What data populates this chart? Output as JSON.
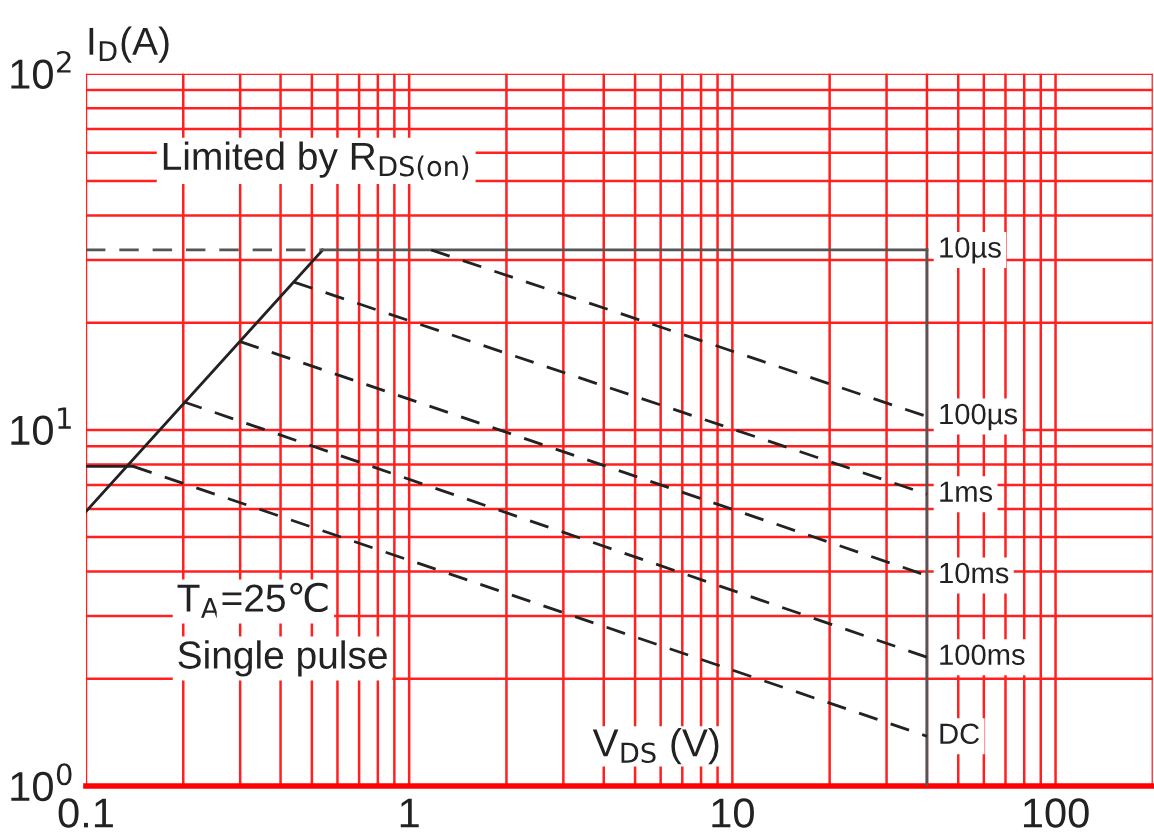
{
  "chart_data": {
    "type": "line",
    "xlabel": "V$_{DS}$ (V)",
    "ylabel": "I$_{D}$(A)",
    "annotations": [
      "Limited by R$_{DS(on)}$",
      "T$_{A}$=25℃",
      "Single pulse"
    ],
    "log": "xy",
    "grid": true,
    "marker": "none",
    "xlim": [
      0.1,
      200
    ],
    "xticks": [
      0.1,
      1,
      10,
      100
    ],
    "ylim": [
      1,
      100
    ],
    "yticks": [
      {
        "value": 1,
        "label": "10$^{0}$"
      },
      {
        "value": 10,
        "label": "10$^{1}$"
      },
      {
        "value": 100,
        "label": "10$^{2}$"
      }
    ],
    "series": [
      {
        "color": "#222222",
        "line_style": "solid",
        "x": [
          0.1,
          0.54
        ],
        "values": [
          5.9,
          32
        ]
      },
      {
        "color": "#555555",
        "line_style": "dashed",
        "x": [
          0.1,
          0.54
        ],
        "values": [
          32,
          32
        ]
      },
      {
        "name": "10µs",
        "color": "#555555",
        "line_style": "solid",
        "x": [
          0.54,
          40
        ],
        "values": [
          32,
          32
        ]
      },
      {
        "color": "#555555",
        "line_style": "solid",
        "x": [
          40,
          40
        ],
        "values": [
          32,
          1
        ]
      },
      {
        "color": "#222222",
        "line_style": "solid",
        "x": [
          0.1,
          0.14
        ],
        "values": [
          7.9,
          7.9
        ]
      },
      {
        "name": "100µs",
        "color": "#222222",
        "line_style": "dashed",
        "x": [
          1.17,
          40
        ],
        "values": [
          32,
          10.9
        ]
      },
      {
        "name": "1ms",
        "color": "#222222",
        "line_style": "dashed",
        "x": [
          0.44,
          40
        ],
        "values": [
          26,
          6.6
        ]
      },
      {
        "name": "10ms",
        "color": "#222222",
        "line_style": "dashed",
        "x": [
          0.3,
          40
        ],
        "values": [
          17.7,
          3.9
        ]
      },
      {
        "name": "100ms",
        "color": "#222222",
        "line_style": "dashed",
        "x": [
          0.2,
          40
        ],
        "values": [
          12,
          2.3
        ]
      },
      {
        "name": "DC",
        "color": "#222222",
        "line_style": "dashed",
        "x": [
          0.14,
          40
        ],
        "values": [
          7.9,
          1.38
        ]
      }
    ]
  }
}
